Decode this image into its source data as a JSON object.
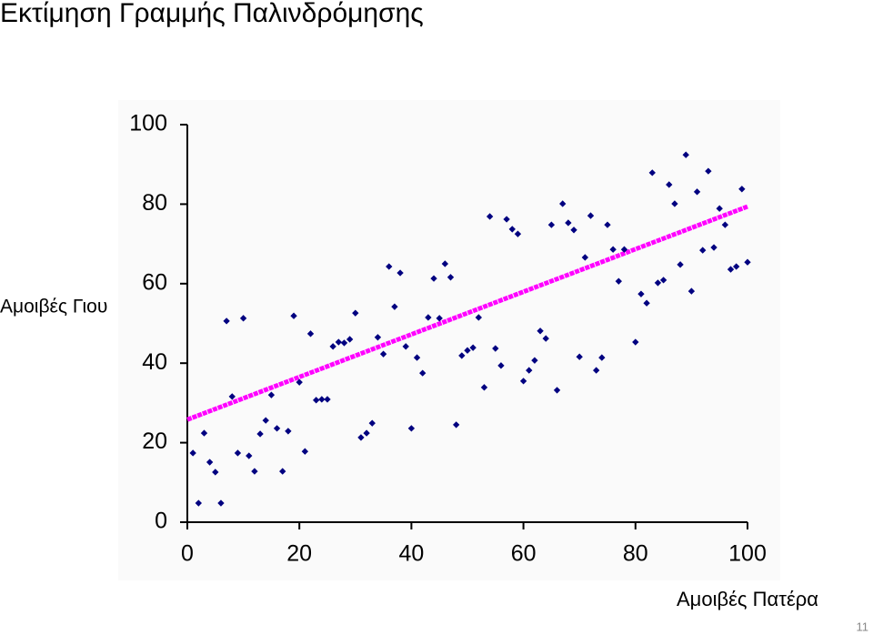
{
  "title": "Εκτίμηση Γραμμής Παλινδρόμησης",
  "page_number": "11",
  "chart_data": {
    "type": "scatter",
    "x_label": "Αμοιβές Πατέρα",
    "y_label": "Αμοιβές Γιου",
    "x": [
      1,
      2,
      3,
      4,
      5,
      6,
      7,
      8,
      9,
      10,
      11,
      12,
      13,
      14,
      15,
      16,
      17,
      18,
      19,
      20,
      21,
      22,
      23,
      24,
      25,
      26,
      27,
      28,
      29,
      30,
      31,
      32,
      33,
      34,
      35,
      36,
      37,
      38,
      39,
      40,
      41,
      42,
      43,
      44,
      45,
      46,
      47,
      48,
      49,
      50,
      51,
      52,
      53,
      54,
      55,
      56,
      57,
      58,
      59,
      60,
      61,
      62,
      63,
      64,
      65,
      66,
      67,
      68,
      69,
      70,
      71,
      72,
      73,
      74,
      75,
      76,
      77,
      78,
      80,
      81,
      82,
      83,
      84,
      85,
      86,
      87,
      88,
      89,
      90,
      91,
      92,
      93,
      94,
      95,
      96,
      97,
      98,
      99,
      100
    ],
    "series": [
      {
        "color": "#000080",
        "values": [
          17.4,
          4.8,
          22.4,
          15.1,
          12.6,
          4.8,
          50.6,
          31.6,
          17.4,
          51.3,
          16.7,
          12.8,
          22.2,
          25.6,
          32.0,
          23.6,
          12.8,
          22.9,
          51.9,
          35.2,
          17.8,
          47.4,
          30.7,
          30.9,
          30.9,
          44.2,
          45.3,
          45.1,
          46.0,
          52.6,
          21.3,
          22.4,
          24.9,
          46.5,
          42.3,
          64.3,
          54.2,
          62.7,
          44.2,
          23.6,
          41.4,
          37.5,
          51.5,
          61.3,
          51.3,
          65.0,
          61.6,
          24.5,
          41.9,
          43.2,
          43.9,
          51.5,
          33.9,
          76.9,
          43.7,
          39.4,
          76.2,
          73.7,
          72.5,
          35.5,
          38.2,
          40.7,
          48.1,
          46.2,
          74.8,
          33.2,
          80.1,
          75.3,
          73.5,
          41.6,
          66.6,
          77.1,
          38.2,
          41.4,
          74.8,
          68.6,
          60.6,
          68.6,
          45.3,
          57.4,
          55.1,
          87.9,
          60.2,
          60.9,
          84.9,
          80.1,
          64.8,
          92.4,
          58.1,
          83.1,
          68.4,
          88.3,
          69.1,
          78.9,
          74.8,
          63.6,
          64.3,
          83.8,
          65.4
        ]
      }
    ],
    "regression": {
      "color": "#ff00ff",
      "x": [
        0,
        100
      ],
      "values": [
        25.8,
        79.4
      ]
    },
    "xlim": [
      0,
      100
    ],
    "ylim": [
      0,
      100
    ],
    "xticks": [
      0,
      20,
      40,
      60,
      80,
      100
    ],
    "yticks": [
      0,
      20,
      40,
      60,
      80,
      100
    ]
  }
}
